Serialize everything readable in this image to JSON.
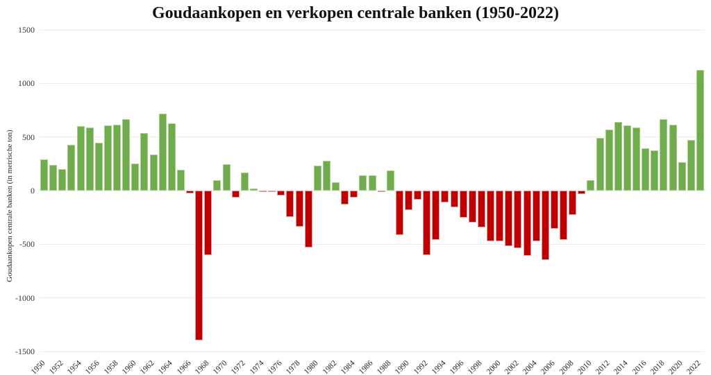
{
  "chart_data": {
    "type": "bar",
    "title": "Goudaankopen en verkopen centrale banken (1950-2022)",
    "ylabel": "Goudaankopen centrale banken (in metrische ton)",
    "xlabel": "",
    "ylim": [
      -1500,
      1500
    ],
    "yticks": [
      1500,
      1000,
      500,
      0,
      -500,
      -1000,
      -1500
    ],
    "grid": "horizontal-light",
    "legend": "none",
    "colors": {
      "positive_fill": "#6fac4b",
      "positive_border": "#a9cd8e",
      "negative_fill": "#c00000",
      "negative_border": "#de9f9f",
      "background": "#ffffff",
      "gridline": "#ebebeb",
      "text": "#222222"
    },
    "x_label_step": 2,
    "categories": [
      1950,
      1951,
      1952,
      1953,
      1954,
      1955,
      1956,
      1957,
      1958,
      1959,
      1960,
      1961,
      1962,
      1963,
      1964,
      1965,
      1966,
      1967,
      1968,
      1969,
      1970,
      1971,
      1972,
      1973,
      1974,
      1975,
      1976,
      1977,
      1978,
      1979,
      1980,
      1981,
      1982,
      1983,
      1984,
      1985,
      1986,
      1987,
      1988,
      1989,
      1990,
      1991,
      1992,
      1993,
      1994,
      1995,
      1996,
      1997,
      1998,
      1999,
      2000,
      2001,
      2002,
      2003,
      2004,
      2005,
      2006,
      2007,
      2008,
      2009,
      2010,
      2011,
      2012,
      2013,
      2014,
      2015,
      2016,
      2017,
      2018,
      2019,
      2020,
      2021,
      2022
    ],
    "values": [
      290,
      240,
      200,
      425,
      600,
      590,
      445,
      610,
      615,
      665,
      255,
      535,
      335,
      720,
      630,
      195,
      -25,
      -1395,
      -600,
      95,
      245,
      -65,
      170,
      20,
      -10,
      -10,
      -45,
      -245,
      -335,
      -530,
      235,
      280,
      80,
      -130,
      -65,
      140,
      140,
      -5,
      190,
      -415,
      -180,
      -85,
      -600,
      -460,
      -110,
      -155,
      -255,
      -300,
      -345,
      -470,
      -470,
      -515,
      -535,
      -605,
      -470,
      -645,
      -355,
      -460,
      -225,
      -30,
      100,
      490,
      570,
      640,
      610,
      590,
      395,
      375,
      665,
      615,
      265,
      470,
      1125
    ]
  }
}
